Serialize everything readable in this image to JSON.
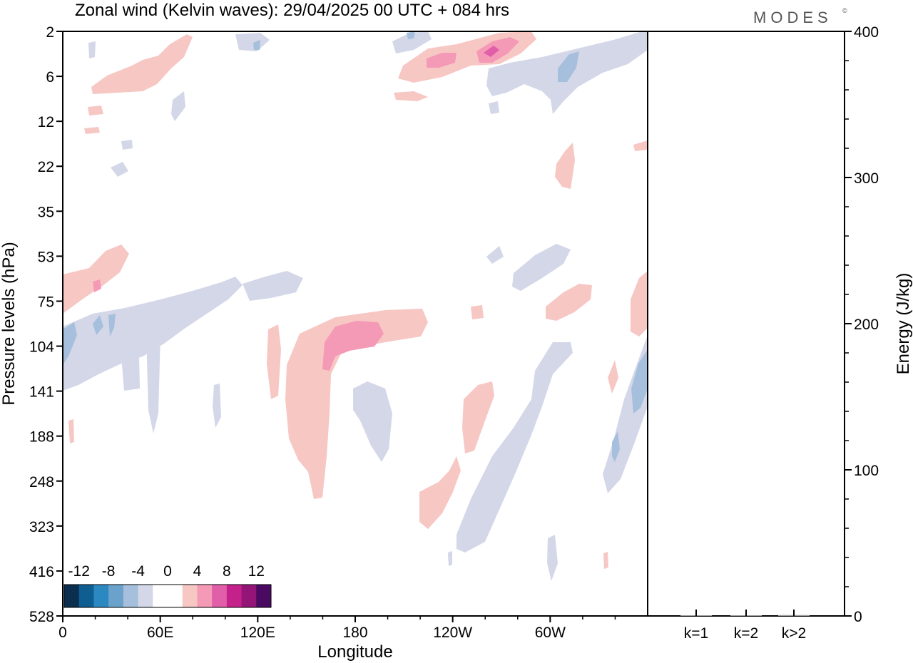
{
  "header": {
    "title": "Zonal wind (Kelvin waves):  29/04/2025  00 UTC  + 084 hrs",
    "brand": "MODES",
    "brand_mark": "©"
  },
  "chart_data": [
    {
      "type": "heatmap",
      "title": "Zonal wind (Kelvin waves):  29/04/2025  00 UTC  + 084 hrs",
      "xlabel": "Longitude",
      "ylabel": "Pressure levels (hPa)",
      "x_ticks": [
        "0",
        "60E",
        "120E",
        "180",
        "120W",
        "60W"
      ],
      "x_tick_degrees": [
        0,
        60,
        120,
        180,
        240,
        300
      ],
      "xlim": [
        0,
        360
      ],
      "y_ticks": [
        "2",
        "6",
        "12",
        "22",
        "35",
        "53",
        "75",
        "104",
        "141",
        "188",
        "248",
        "323",
        "416",
        "528"
      ],
      "y_scale": "log-like pressure levels, top = 2 hPa, bottom = 528 hPa",
      "colorbar": {
        "labels": [
          "-12",
          "-8",
          "-4",
          "0",
          "4",
          "8",
          "12"
        ],
        "levels": [
          -14,
          -12,
          -10,
          -8,
          -6,
          -4,
          -2,
          2,
          4,
          6,
          8,
          10,
          12,
          14
        ],
        "colors": [
          "#0d2f4f",
          "#0e5e91",
          "#2c88c1",
          "#6aa2cc",
          "#a6bfdc",
          "#d3d7e8",
          "#ffffff",
          "#ffffff",
          "#f7c7c4",
          "#f49ab6",
          "#e15ea9",
          "#c5218b",
          "#921577",
          "#4a0a62"
        ],
        "placement": "bottom-left"
      },
      "features": [
        {
          "sign": "positive",
          "lon": [
            0,
            35
          ],
          "p": [
            53,
            90
          ],
          "max": 6
        },
        {
          "sign": "negative",
          "lon": [
            0,
            150
          ],
          "p": [
            75,
            160
          ],
          "min": -8
        },
        {
          "sign": "positive",
          "lon": [
            140,
            225
          ],
          "p": [
            75,
            300
          ],
          "max": 7
        },
        {
          "sign": "negative",
          "lon": [
            180,
            200
          ],
          "p": [
            140,
            248
          ],
          "min": -4
        },
        {
          "sign": "positive",
          "lon": [
            210,
            265
          ],
          "p": [
            2,
            8
          ],
          "max": 9
        },
        {
          "sign": "negative",
          "lon": [
            265,
            360
          ],
          "p": [
            2,
            12
          ],
          "min": -6
        },
        {
          "sign": "negative",
          "lon": [
            240,
            310
          ],
          "p": [
            104,
            400
          ],
          "min": -4
        },
        {
          "sign": "positive",
          "lon": [
            225,
            260
          ],
          "p": [
            141,
            340
          ],
          "max": 4
        },
        {
          "sign": "negative",
          "lon": [
            330,
            360
          ],
          "p": [
            104,
            300
          ],
          "min": -8
        },
        {
          "sign": "positive",
          "lon": [
            20,
            80
          ],
          "p": [
            2,
            10
          ],
          "max": 5
        }
      ]
    },
    {
      "type": "bar",
      "title": "",
      "xlabel": "",
      "ylabel": "Energy (J/kg)",
      "categories": [
        "k=1",
        "k=2",
        "k>2"
      ],
      "values": [
        0.5,
        0.3,
        0.6
      ],
      "ylim": [
        0,
        400
      ],
      "y_ticks": [
        "0",
        "100",
        "200",
        "300",
        "400"
      ]
    }
  ]
}
